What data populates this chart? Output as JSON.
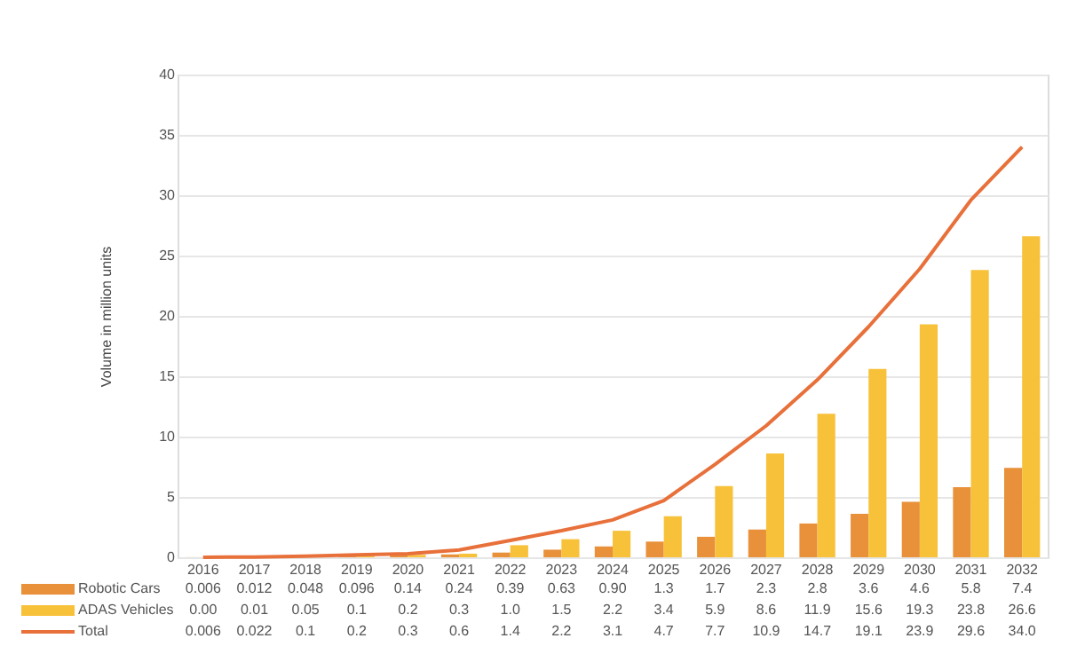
{
  "chart_data": {
    "type": "bar",
    "ylabel": "Volume in million units",
    "categories": [
      "2016",
      "2017",
      "2018",
      "2019",
      "2020",
      "2021",
      "2022",
      "2023",
      "2024",
      "2025",
      "2026",
      "2027",
      "2028",
      "2029",
      "2030",
      "2031",
      "2032"
    ],
    "series": [
      {
        "name": "Robotic Cars",
        "color": "#e8903a",
        "values": [
          0.006,
          0.012,
          0.048,
          0.096,
          0.14,
          0.24,
          0.39,
          0.63,
          0.9,
          1.3,
          1.7,
          2.3,
          2.8,
          3.6,
          4.6,
          5.8,
          7.4
        ],
        "value_labels": [
          "0.006",
          "0.012",
          "0.048",
          "0.096",
          "0.14",
          "0.24",
          "0.39",
          "0.63",
          "0.90",
          "1.3",
          "1.7",
          "2.3",
          "2.8",
          "3.6",
          "4.6",
          "5.8",
          "7.4"
        ]
      },
      {
        "name": "ADAS Vehicles",
        "color": "#f8c13a",
        "values": [
          0.0,
          0.01,
          0.05,
          0.1,
          0.2,
          0.3,
          1.0,
          1.5,
          2.2,
          3.4,
          5.9,
          8.6,
          11.9,
          15.6,
          19.3,
          23.8,
          26.6
        ],
        "value_labels": [
          "0.00",
          "0.01",
          "0.05",
          "0.1",
          "0.2",
          "0.3",
          "1.0",
          "1.5",
          "2.2",
          "3.4",
          "5.9",
          "8.6",
          "11.9",
          "15.6",
          "19.3",
          "23.8",
          "26.6"
        ]
      },
      {
        "name": "Total",
        "type": "line",
        "color": "#e8703a",
        "values": [
          0.006,
          0.022,
          0.1,
          0.2,
          0.3,
          0.6,
          1.4,
          2.2,
          3.1,
          4.7,
          7.7,
          10.9,
          14.7,
          19.1,
          23.9,
          29.6,
          34.0
        ],
        "value_labels": [
          "0.006",
          "0.022",
          "0.1",
          "0.2",
          "0.3",
          "0.6",
          "1.4",
          "2.2",
          "3.1",
          "4.7",
          "7.7",
          "10.9",
          "14.7",
          "19.1",
          "23.9",
          "29.6",
          "34.0"
        ]
      }
    ],
    "ylim": [
      0,
      40
    ],
    "yticks": [
      0,
      5,
      10,
      15,
      20,
      25,
      30,
      35,
      40
    ],
    "grid": "y",
    "legend": "bottom left"
  }
}
